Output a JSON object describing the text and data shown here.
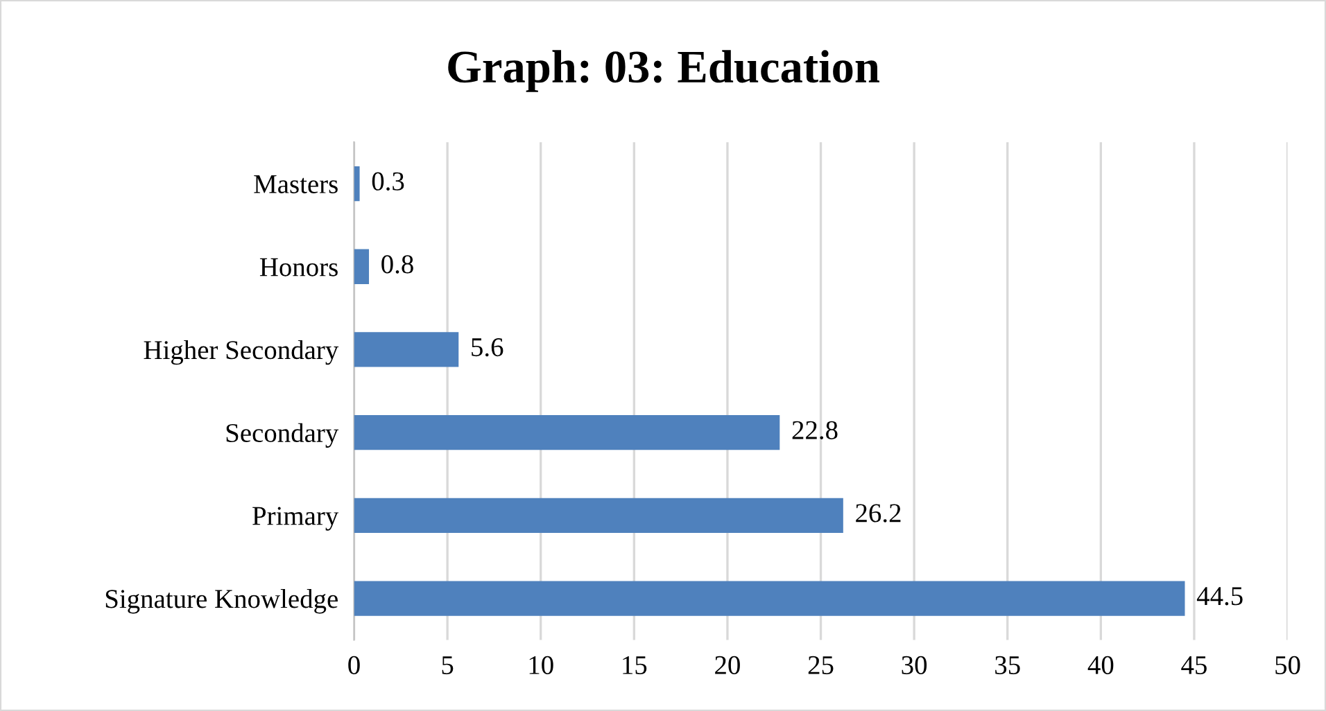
{
  "chart_data": {
    "type": "bar",
    "orientation": "horizontal",
    "title": "Graph: 03: Education",
    "categories": [
      "Masters",
      "Honors",
      "Higher Secondary",
      "Secondary",
      "Primary",
      "Signature Knowledge"
    ],
    "values": [
      0.3,
      0.8,
      5.6,
      22.8,
      26.2,
      44.5
    ],
    "color": "#4f81bd",
    "xlim": [
      0,
      50
    ],
    "xticks": [
      0,
      5,
      10,
      15,
      20,
      25,
      30,
      35,
      40,
      45,
      50
    ],
    "grid": "x",
    "data_labels": true
  }
}
